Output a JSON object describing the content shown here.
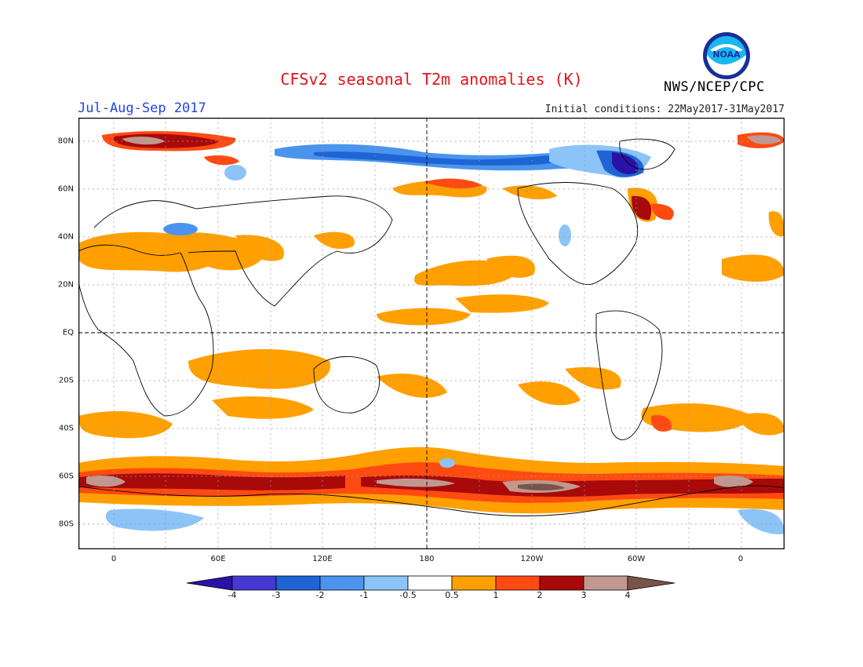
{
  "title": "CFSv2 seasonal T2m anomalies (K)",
  "season": "Jul-Aug-Sep 2017",
  "initial_conditions": "Initial conditions: 22May2017-31May2017",
  "agency": "NWS/NCEP/CPC",
  "logo_text": "NOAA",
  "colors": {
    "title": "#e0141e",
    "season": "#2244ee",
    "bins": [
      "#2a12a6",
      "#4638d2",
      "#1e64d4",
      "#4a94ee",
      "#8cc4f8",
      "#ffffff",
      "#ffa000",
      "#ff4a12",
      "#a80a0a",
      "#c09890",
      "#7a5448"
    ]
  },
  "axes": {
    "lon_labels": [
      "0",
      "60E",
      "120E",
      "180",
      "120W",
      "60W",
      "0"
    ],
    "lat_labels": [
      "80N",
      "60N",
      "40N",
      "20N",
      "EQ",
      "20S",
      "40S",
      "60S",
      "80S"
    ]
  },
  "colorbar": {
    "labels": [
      "-4",
      "-3",
      "-2",
      "-1",
      "-0.5",
      "0.5",
      "1",
      "2",
      "3",
      "4"
    ]
  }
}
